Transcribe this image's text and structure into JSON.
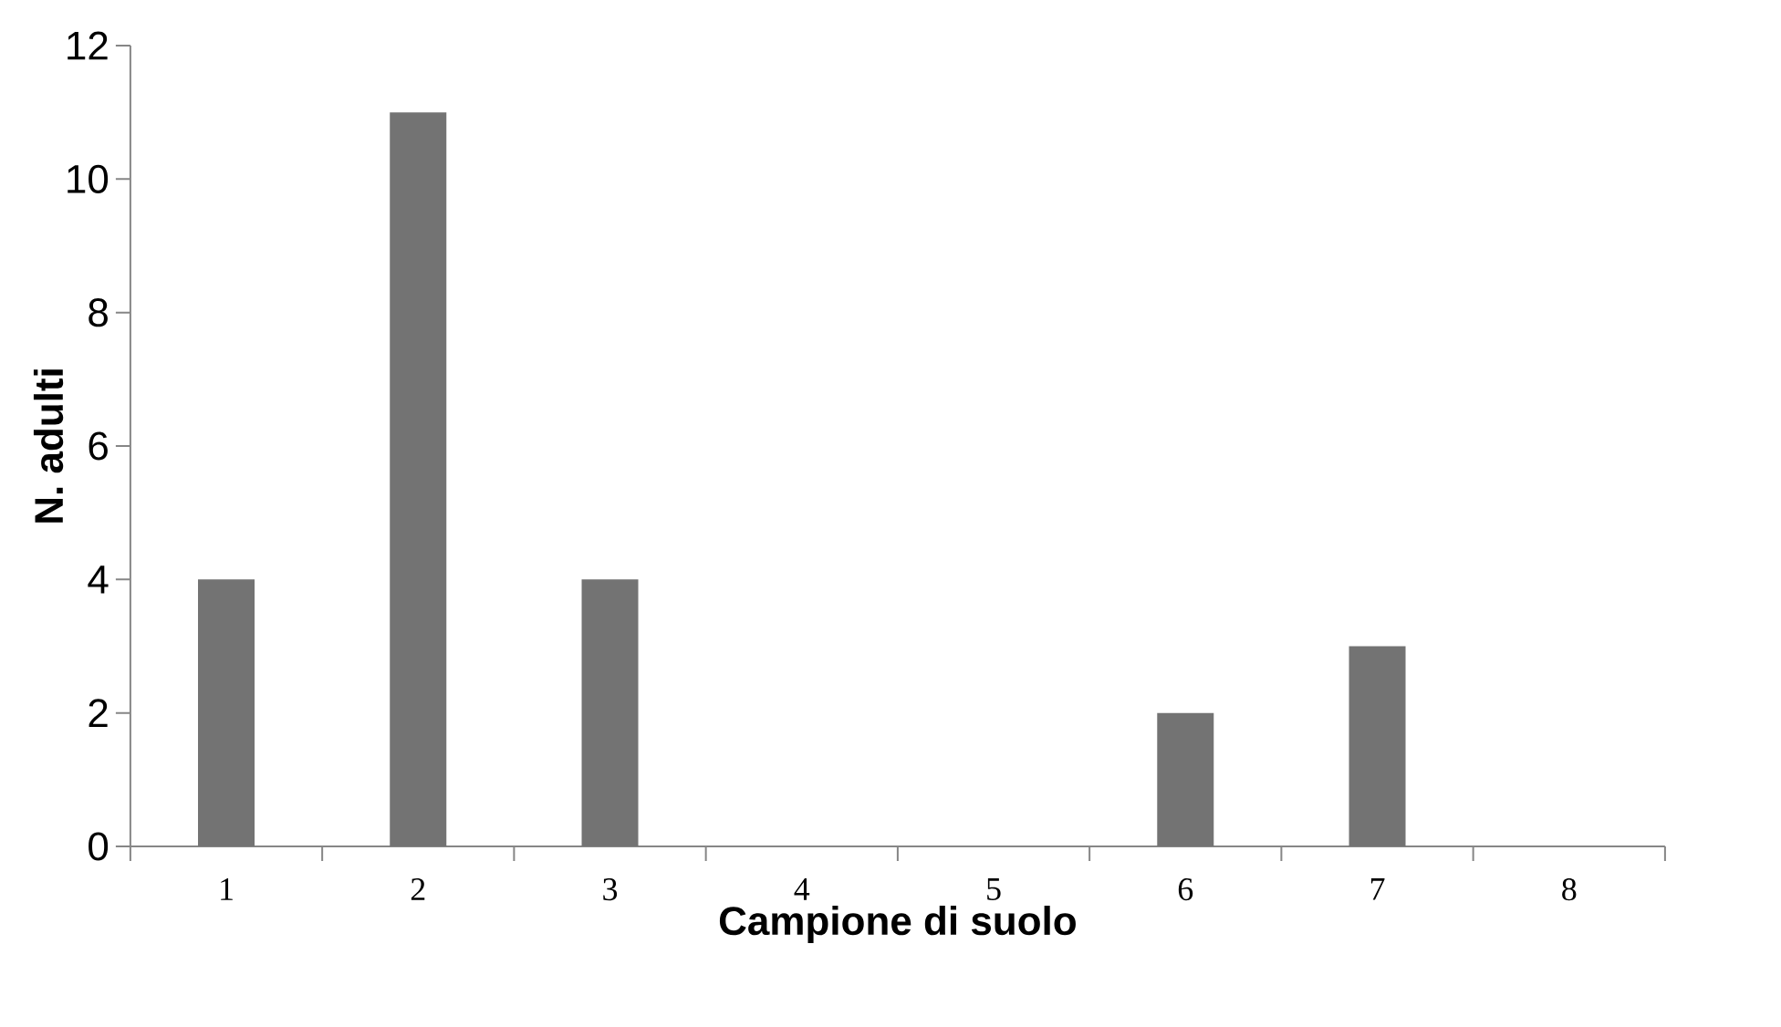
{
  "chart_data": {
    "type": "bar",
    "xlabel": "Campione di suolo",
    "ylabel": "N. adulti",
    "categories": [
      "1",
      "2",
      "3",
      "4",
      "5",
      "6",
      "7",
      "8"
    ],
    "values": [
      4,
      11,
      4,
      0,
      0,
      2,
      3,
      0
    ],
    "color": "#737373",
    "ylim": [
      0,
      12
    ],
    "yticks": [
      0,
      2,
      4,
      6,
      8,
      10,
      12
    ]
  }
}
